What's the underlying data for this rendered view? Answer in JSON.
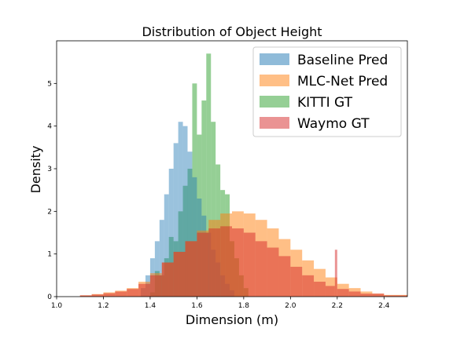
{
  "chart_data": {
    "type": "bar",
    "title": "Distribution of Object Height",
    "xlabel": "Dimension (m)",
    "ylabel": "Density",
    "xlim": [
      1.0,
      2.5
    ],
    "ylim": [
      0,
      6.0
    ],
    "xticks": [
      "1.0",
      "1.2",
      "1.4",
      "1.6",
      "1.8",
      "2.0",
      "2.2",
      "2.4"
    ],
    "yticks": [
      "0",
      "1",
      "2",
      "3",
      "4",
      "5"
    ],
    "legend_position": "top-right",
    "grid": false,
    "series": [
      {
        "name": "KITTI GT",
        "color": "#2ca02c",
        "opacity": 0.5,
        "bins": [
          {
            "x0": 1.4,
            "x1": 1.42,
            "y": 0.1
          },
          {
            "x0": 1.42,
            "x1": 1.44,
            "y": 0.6
          },
          {
            "x0": 1.44,
            "x1": 1.46,
            "y": 0.5
          },
          {
            "x0": 1.46,
            "x1": 1.48,
            "y": 0.9
          },
          {
            "x0": 1.48,
            "x1": 1.5,
            "y": 1.4
          },
          {
            "x0": 1.5,
            "x1": 1.52,
            "y": 1.3
          },
          {
            "x0": 1.52,
            "x1": 1.54,
            "y": 2.0
          },
          {
            "x0": 1.54,
            "x1": 1.56,
            "y": 2.6
          },
          {
            "x0": 1.56,
            "x1": 1.58,
            "y": 3.0
          },
          {
            "x0": 1.58,
            "x1": 1.6,
            "y": 5.0
          },
          {
            "x0": 1.6,
            "x1": 1.62,
            "y": 3.8
          },
          {
            "x0": 1.62,
            "x1": 1.64,
            "y": 4.6
          },
          {
            "x0": 1.64,
            "x1": 1.66,
            "y": 5.7
          },
          {
            "x0": 1.66,
            "x1": 1.68,
            "y": 4.1
          },
          {
            "x0": 1.68,
            "x1": 1.7,
            "y": 3.1
          },
          {
            "x0": 1.7,
            "x1": 1.72,
            "y": 2.5
          },
          {
            "x0": 1.72,
            "x1": 1.74,
            "y": 2.4
          },
          {
            "x0": 1.74,
            "x1": 1.76,
            "y": 1.3
          },
          {
            "x0": 1.76,
            "x1": 1.78,
            "y": 0.9
          },
          {
            "x0": 1.78,
            "x1": 1.8,
            "y": 0.5
          },
          {
            "x0": 1.8,
            "x1": 1.82,
            "y": 0.2
          }
        ]
      },
      {
        "name": "Baseline Pred",
        "color": "#1f77b4",
        "opacity": 0.45,
        "bins": [
          {
            "x0": 1.36,
            "x1": 1.38,
            "y": 0.2
          },
          {
            "x0": 1.38,
            "x1": 1.4,
            "y": 0.5
          },
          {
            "x0": 1.4,
            "x1": 1.42,
            "y": 0.9
          },
          {
            "x0": 1.42,
            "x1": 1.44,
            "y": 1.3
          },
          {
            "x0": 1.44,
            "x1": 1.46,
            "y": 1.8
          },
          {
            "x0": 1.46,
            "x1": 1.48,
            "y": 2.4
          },
          {
            "x0": 1.48,
            "x1": 1.5,
            "y": 3.0
          },
          {
            "x0": 1.5,
            "x1": 1.52,
            "y": 3.6
          },
          {
            "x0": 1.52,
            "x1": 1.54,
            "y": 4.1
          },
          {
            "x0": 1.54,
            "x1": 1.56,
            "y": 4.0
          },
          {
            "x0": 1.56,
            "x1": 1.58,
            "y": 3.4
          },
          {
            "x0": 1.58,
            "x1": 1.6,
            "y": 2.8
          },
          {
            "x0": 1.6,
            "x1": 1.62,
            "y": 2.3
          },
          {
            "x0": 1.62,
            "x1": 1.64,
            "y": 1.9
          },
          {
            "x0": 1.64,
            "x1": 1.66,
            "y": 1.5
          },
          {
            "x0": 1.66,
            "x1": 1.68,
            "y": 1.1
          },
          {
            "x0": 1.68,
            "x1": 1.7,
            "y": 0.8
          },
          {
            "x0": 1.7,
            "x1": 1.72,
            "y": 0.5
          },
          {
            "x0": 1.72,
            "x1": 1.74,
            "y": 0.3
          },
          {
            "x0": 1.74,
            "x1": 1.76,
            "y": 0.15
          }
        ]
      },
      {
        "name": "MLC-Net Pred",
        "color": "#ff7f0e",
        "opacity": 0.5,
        "bins": [
          {
            "x0": 1.1,
            "x1": 1.15,
            "y": 0.03
          },
          {
            "x0": 1.15,
            "x1": 1.2,
            "y": 0.06
          },
          {
            "x0": 1.2,
            "x1": 1.25,
            "y": 0.1
          },
          {
            "x0": 1.25,
            "x1": 1.3,
            "y": 0.14
          },
          {
            "x0": 1.3,
            "x1": 1.35,
            "y": 0.2
          },
          {
            "x0": 1.35,
            "x1": 1.4,
            "y": 0.35
          },
          {
            "x0": 1.4,
            "x1": 1.45,
            "y": 0.55
          },
          {
            "x0": 1.45,
            "x1": 1.5,
            "y": 0.8
          },
          {
            "x0": 1.5,
            "x1": 1.55,
            "y": 1.05
          },
          {
            "x0": 1.55,
            "x1": 1.6,
            "y": 1.3
          },
          {
            "x0": 1.6,
            "x1": 1.65,
            "y": 1.55
          },
          {
            "x0": 1.65,
            "x1": 1.7,
            "y": 1.8
          },
          {
            "x0": 1.7,
            "x1": 1.75,
            "y": 1.95
          },
          {
            "x0": 1.75,
            "x1": 1.8,
            "y": 2.0
          },
          {
            "x0": 1.8,
            "x1": 1.85,
            "y": 1.95
          },
          {
            "x0": 1.85,
            "x1": 1.9,
            "y": 1.8
          },
          {
            "x0": 1.9,
            "x1": 1.95,
            "y": 1.6
          },
          {
            "x0": 1.95,
            "x1": 2.0,
            "y": 1.35
          },
          {
            "x0": 2.0,
            "x1": 2.05,
            "y": 1.1
          },
          {
            "x0": 2.05,
            "x1": 2.1,
            "y": 0.85
          },
          {
            "x0": 2.1,
            "x1": 2.15,
            "y": 0.65
          },
          {
            "x0": 2.15,
            "x1": 2.2,
            "y": 0.45
          },
          {
            "x0": 2.2,
            "x1": 2.25,
            "y": 0.3
          },
          {
            "x0": 2.25,
            "x1": 2.3,
            "y": 0.2
          },
          {
            "x0": 2.3,
            "x1": 2.35,
            "y": 0.12
          },
          {
            "x0": 2.35,
            "x1": 2.4,
            "y": 0.07
          },
          {
            "x0": 2.4,
            "x1": 2.5,
            "y": 0.04
          }
        ]
      },
      {
        "name": "Waymo GT",
        "color": "#d62728",
        "opacity": 0.5,
        "bins": [
          {
            "x0": 1.1,
            "x1": 1.15,
            "y": 0.03
          },
          {
            "x0": 1.15,
            "x1": 1.2,
            "y": 0.05
          },
          {
            "x0": 1.2,
            "x1": 1.25,
            "y": 0.08
          },
          {
            "x0": 1.25,
            "x1": 1.3,
            "y": 0.12
          },
          {
            "x0": 1.3,
            "x1": 1.35,
            "y": 0.18
          },
          {
            "x0": 1.35,
            "x1": 1.4,
            "y": 0.3
          },
          {
            "x0": 1.4,
            "x1": 1.45,
            "y": 0.5
          },
          {
            "x0": 1.45,
            "x1": 1.5,
            "y": 0.8
          },
          {
            "x0": 1.5,
            "x1": 1.55,
            "y": 1.05
          },
          {
            "x0": 1.55,
            "x1": 1.6,
            "y": 1.3
          },
          {
            "x0": 1.6,
            "x1": 1.65,
            "y": 1.5
          },
          {
            "x0": 1.65,
            "x1": 1.7,
            "y": 1.6
          },
          {
            "x0": 1.7,
            "x1": 1.75,
            "y": 1.65
          },
          {
            "x0": 1.75,
            "x1": 1.8,
            "y": 1.6
          },
          {
            "x0": 1.8,
            "x1": 1.85,
            "y": 1.5
          },
          {
            "x0": 1.85,
            "x1": 1.9,
            "y": 1.3
          },
          {
            "x0": 1.9,
            "x1": 1.95,
            "y": 1.15
          },
          {
            "x0": 1.95,
            "x1": 2.0,
            "y": 0.95
          },
          {
            "x0": 2.0,
            "x1": 2.05,
            "y": 0.7
          },
          {
            "x0": 2.05,
            "x1": 2.1,
            "y": 0.5
          },
          {
            "x0": 2.1,
            "x1": 2.15,
            "y": 0.35
          },
          {
            "x0": 2.15,
            "x1": 2.19,
            "y": 0.25
          },
          {
            "x0": 2.19,
            "x1": 2.2,
            "y": 1.1
          },
          {
            "x0": 2.2,
            "x1": 2.25,
            "y": 0.18
          },
          {
            "x0": 2.25,
            "x1": 2.3,
            "y": 0.12
          },
          {
            "x0": 2.3,
            "x1": 2.4,
            "y": 0.07
          },
          {
            "x0": 2.4,
            "x1": 2.5,
            "y": 0.03
          }
        ]
      }
    ],
    "legend": [
      {
        "label": "Baseline Pred",
        "color": "#1f77b4"
      },
      {
        "label": "MLC-Net Pred",
        "color": "#ff7f0e"
      },
      {
        "label": "KITTI GT",
        "color": "#2ca02c"
      },
      {
        "label": "Waymo GT",
        "color": "#d62728"
      }
    ]
  }
}
